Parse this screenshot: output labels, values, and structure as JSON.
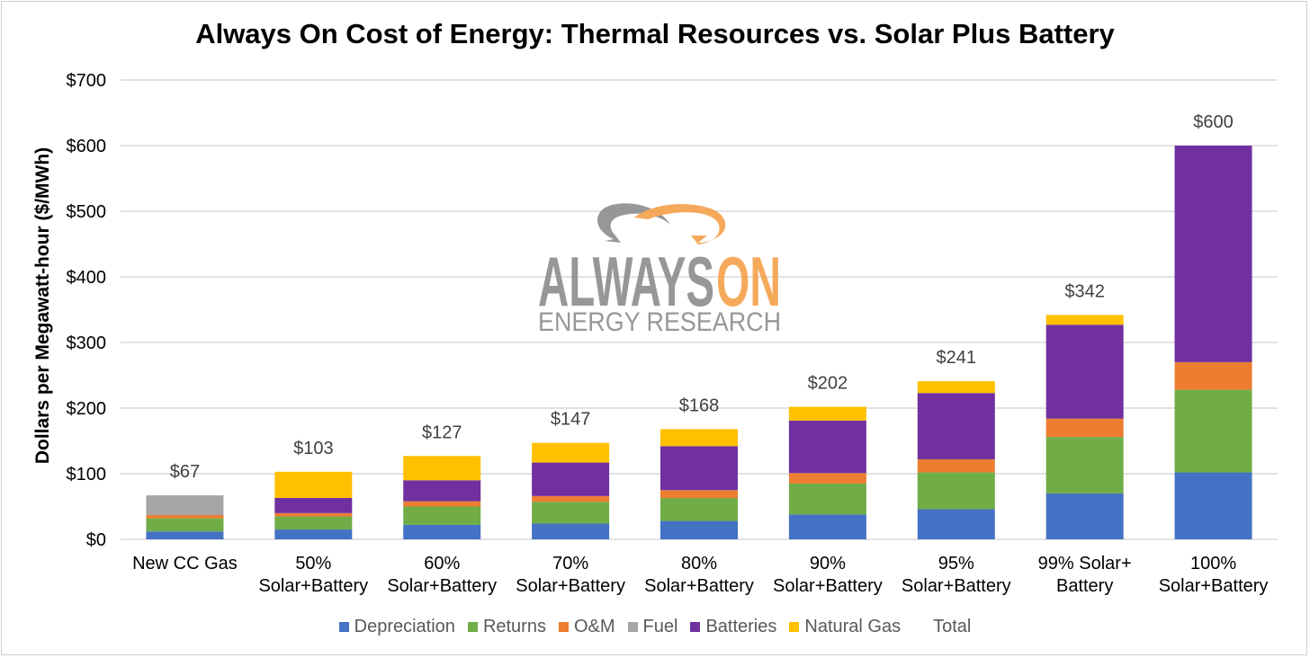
{
  "chart_data": {
    "type": "bar",
    "stacked": true,
    "title": "Always On Cost of Energy: Thermal Resources vs. Solar Plus Battery",
    "ylabel": "Dollars per Megawatt-hour ($/MWh)",
    "xlabel": "",
    "ylim": [
      0,
      700
    ],
    "yticks": [
      0,
      100,
      200,
      300,
      400,
      500,
      600,
      700
    ],
    "ytick_labels": [
      "$0",
      "$100",
      "$200",
      "$300",
      "$400",
      "$500",
      "$600",
      "$700"
    ],
    "grid": true,
    "legend_position": "bottom",
    "categories": [
      [
        "New CC Gas"
      ],
      [
        "50%",
        "Solar+Battery"
      ],
      [
        "60%",
        "Solar+Battery"
      ],
      [
        "70%",
        "Solar+Battery"
      ],
      [
        "80%",
        "Solar+Battery"
      ],
      [
        "90%",
        "Solar+Battery"
      ],
      [
        "95%",
        "Solar+Battery"
      ],
      [
        "99% Solar+",
        "Battery"
      ],
      [
        "100%",
        "Solar+Battery"
      ]
    ],
    "series": [
      {
        "name": "Depreciation",
        "color": "#4472c4",
        "values": [
          12,
          15,
          22,
          24,
          28,
          38,
          46,
          70,
          102
        ]
      },
      {
        "name": "Returns",
        "color": "#70ad47",
        "values": [
          20,
          20,
          28,
          33,
          35,
          47,
          56,
          86,
          126
        ]
      },
      {
        "name": "O&M",
        "color": "#ed7d31",
        "values": [
          5,
          5,
          8,
          9,
          12,
          16,
          20,
          28,
          42
        ]
      },
      {
        "name": "Fuel",
        "color": "#a5a5a5",
        "values": [
          30,
          0,
          0,
          0,
          0,
          0,
          0,
          0,
          0
        ]
      },
      {
        "name": "Batteries",
        "color": "#7030a0",
        "values": [
          0,
          23,
          32,
          51,
          67,
          80,
          101,
          143,
          330
        ]
      },
      {
        "name": "Natural Gas",
        "color": "#ffc000",
        "values": [
          0,
          40,
          37,
          30,
          26,
          21,
          18,
          15,
          0
        ]
      }
    ],
    "totals_series_name": "Total",
    "totals": [
      67,
      103,
      127,
      147,
      168,
      202,
      241,
      342,
      600
    ],
    "total_labels": [
      "$67",
      "$103",
      "$127",
      "$147",
      "$168",
      "$202",
      "$241",
      "$342",
      "$600"
    ]
  },
  "watermark": {
    "brand_primary": "ALWAYS",
    "brand_accent": "ON",
    "brand_sub": "ENERGY RESEARCH",
    "gray_color": "#8c8c8c",
    "orange_color": "#f5a04a"
  },
  "colors": {
    "grid": "#d9d9d9",
    "axis_text": "#000000",
    "label_text": "#404040"
  }
}
